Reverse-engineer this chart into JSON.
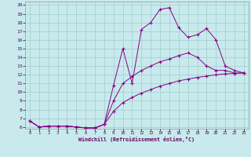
{
  "xlabel": "Windchill (Refroidissement éolien,°C)",
  "xlim": [
    -0.5,
    23.5
  ],
  "ylim": [
    6,
    20
  ],
  "xticks": [
    0,
    1,
    2,
    3,
    4,
    5,
    6,
    7,
    8,
    9,
    10,
    11,
    12,
    13,
    14,
    15,
    16,
    17,
    18,
    19,
    20,
    21,
    22,
    23
  ],
  "yticks": [
    6,
    7,
    8,
    9,
    10,
    11,
    12,
    13,
    14,
    15,
    16,
    17,
    18,
    19,
    20
  ],
  "line_color": "#880088",
  "bg_color": "#c8eaec",
  "grid_color": "#a0cccc",
  "line1_x": [
    0,
    1,
    2,
    3,
    4,
    5,
    6,
    7,
    8,
    9,
    10,
    11,
    12,
    13,
    14,
    15,
    16,
    17,
    18,
    19,
    20,
    21,
    22,
    23
  ],
  "line1_y": [
    6.7,
    6.0,
    6.1,
    6.1,
    6.1,
    6.0,
    5.9,
    5.9,
    6.3,
    10.8,
    15.0,
    11.0,
    17.2,
    18.0,
    19.5,
    19.7,
    17.4,
    16.3,
    16.6,
    17.3,
    16.0,
    13.0,
    12.5,
    12.2
  ],
  "line2_x": [
    0,
    1,
    2,
    3,
    4,
    5,
    6,
    7,
    8,
    9,
    10,
    11,
    12,
    13,
    14,
    15,
    16,
    17,
    18,
    19,
    20,
    21,
    22,
    23
  ],
  "line2_y": [
    6.7,
    6.0,
    6.1,
    6.1,
    6.1,
    6.0,
    5.9,
    5.9,
    6.3,
    9.0,
    11.0,
    11.8,
    12.5,
    13.0,
    13.5,
    13.8,
    14.2,
    14.5,
    14.0,
    13.0,
    12.5,
    12.5,
    12.2,
    12.2
  ],
  "line3_x": [
    0,
    1,
    2,
    3,
    4,
    5,
    6,
    7,
    8,
    9,
    10,
    11,
    12,
    13,
    14,
    15,
    16,
    17,
    18,
    19,
    20,
    21,
    22,
    23
  ],
  "line3_y": [
    6.7,
    6.0,
    6.1,
    6.1,
    6.1,
    6.0,
    5.9,
    5.9,
    6.3,
    7.8,
    8.8,
    9.4,
    9.9,
    10.3,
    10.7,
    11.0,
    11.3,
    11.5,
    11.7,
    11.85,
    12.0,
    12.1,
    12.15,
    12.2
  ]
}
